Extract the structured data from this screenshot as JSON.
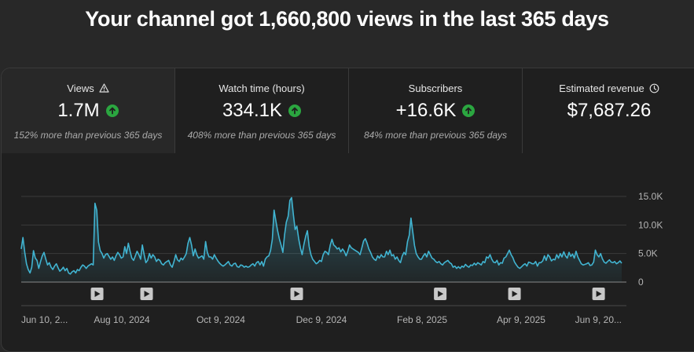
{
  "headline": "Your channel got 1,660,800 views in the last 365 days",
  "metrics": [
    {
      "label": "Views",
      "value": "1.7M",
      "delta": "152% more than previous 365 days",
      "trend": "up",
      "label_icon": "warning-icon"
    },
    {
      "label": "Watch time (hours)",
      "value": "334.1K",
      "delta": "408% more than previous 365 days",
      "trend": "up"
    },
    {
      "label": "Subscribers",
      "value": "+16.6K",
      "delta": "84% more than previous 365 days",
      "trend": "up"
    },
    {
      "label": "Estimated revenue",
      "value": "$7,687.26",
      "delta": "",
      "label_icon": "clock-icon"
    }
  ],
  "colors": {
    "line": "#41b4d1",
    "up": "#2ba640",
    "background": "#282828",
    "card": "#1f1f1f"
  },
  "chart_data": {
    "type": "area",
    "series": [
      {
        "values": [
          5800,
          7800,
          5200,
          3200,
          2200,
          1600,
          2600,
          5500,
          4200,
          3800,
          2400,
          3600,
          4600,
          5200,
          4000,
          3000,
          3400,
          2600,
          2200,
          2800,
          3200,
          2500,
          1900,
          2200,
          2600,
          2000,
          2400,
          1600,
          1400,
          1800,
          2000,
          1600,
          2200,
          2000,
          2600,
          3000,
          2800,
          2400,
          2800,
          3000,
          3200,
          3000,
          13800,
          12600,
          7000,
          5500,
          5000,
          4200,
          4800,
          5000,
          4500,
          4000,
          4400,
          3800,
          4600,
          5200,
          4800,
          4200,
          4400,
          6200,
          5000,
          6800,
          5400,
          4200,
          3800,
          4600,
          5400,
          4800,
          4000,
          6500,
          4800,
          3400,
          3800,
          5000,
          4200,
          4800,
          4400,
          3600,
          4000,
          3800,
          3200,
          3000,
          3400,
          3600,
          3800,
          3000,
          2600,
          3600,
          4800,
          3900,
          3600,
          4200,
          3900,
          4400,
          5000,
          6800,
          7800,
          6500,
          4600,
          5800,
          4800,
          4200,
          4400,
          4600,
          4000,
          7100,
          5200,
          4400,
          4400,
          4000,
          4800,
          4200,
          3700,
          3300,
          3000,
          2800,
          3000,
          3300,
          3600,
          3000,
          2800,
          3200,
          3300,
          2700,
          2600,
          3000,
          2900,
          2600,
          2800,
          2600,
          2700,
          3000,
          3200,
          2800,
          3400,
          3600,
          3000,
          3600,
          2800,
          4000,
          4400,
          4600,
          5500,
          7500,
          12600,
          10800,
          9000,
          7600,
          6500,
          5200,
          8300,
          10500,
          11500,
          14300,
          14800,
          11800,
          9200,
          9800,
          7600,
          6000,
          4800,
          6600,
          8000,
          9000,
          6200,
          4800,
          4000,
          3600,
          3200,
          3400,
          3800,
          3600,
          4800,
          5400,
          5200,
          4800,
          6500,
          7500,
          6500,
          6200,
          5800,
          6000,
          5300,
          5800,
          5400,
          4600,
          5400,
          6500,
          6000,
          5800,
          5600,
          5400,
          5200,
          4800,
          6000,
          7200,
          7600,
          6800,
          5800,
          5200,
          4400,
          4000,
          3800,
          4600,
          4200,
          4800,
          4400,
          4400,
          5400,
          4800,
          5600,
          4600,
          4800,
          4000,
          4400,
          3800,
          3400,
          4600,
          5200,
          4800,
          7100,
          8200,
          11200,
          8800,
          6400,
          5000,
          4400,
          4000,
          4000,
          4600,
          5000,
          4400,
          5400,
          4800,
          4200,
          4000,
          3600,
          3400,
          3600,
          3200,
          3000,
          3400,
          3600,
          3800,
          3400,
          3200,
          2600,
          2800,
          2400,
          2700,
          2400,
          2800,
          2600,
          3100,
          2800,
          2600,
          3000,
          2900,
          3300,
          3000,
          3400,
          3200,
          3000,
          3600,
          3400,
          4400,
          4200,
          4800,
          4000,
          3500,
          3400,
          3800,
          3000,
          3400,
          3300,
          4200,
          4400,
          5000,
          5600,
          4800,
          4300,
          3500,
          3000,
          2600,
          2400,
          2700,
          3000,
          3200,
          2800,
          3500,
          3400,
          3200,
          3200,
          3600,
          2800,
          3400,
          3400,
          3700,
          4600,
          3800,
          4800,
          4400,
          3700,
          4000,
          3900,
          4800,
          4200,
          5000,
          4400,
          5300,
          4600,
          4200,
          5200,
          4500,
          4900,
          4200,
          5400,
          4400,
          3800,
          3200,
          3000,
          3100,
          3200,
          3400,
          2900,
          3000,
          3500,
          5600,
          4800,
          4400,
          5000,
          4100,
          3500,
          3300,
          3600,
          3900,
          3500,
          3400,
          3600,
          3200,
          3400,
          3700,
          3300
        ]
      }
    ],
    "y_ticks": [
      "15.0K",
      "10.0K",
      "5.0K",
      "0"
    ],
    "y_tick_values": [
      15000,
      10000,
      5000,
      0
    ],
    "ylim": [
      0,
      15000
    ],
    "x_ticks": [
      "Jun 10, 2...",
      "Aug 10, 2024",
      "Oct 9, 2024",
      "Dec 9, 2024",
      "Feb 8, 2025",
      "Apr 9, 2025",
      "Jun 9, 20..."
    ],
    "x_tick_days": [
      0,
      61,
      121,
      182,
      243,
      303,
      364
    ],
    "video_markers_days": [
      46,
      76,
      167,
      254,
      299,
      350
    ],
    "grid": true
  }
}
